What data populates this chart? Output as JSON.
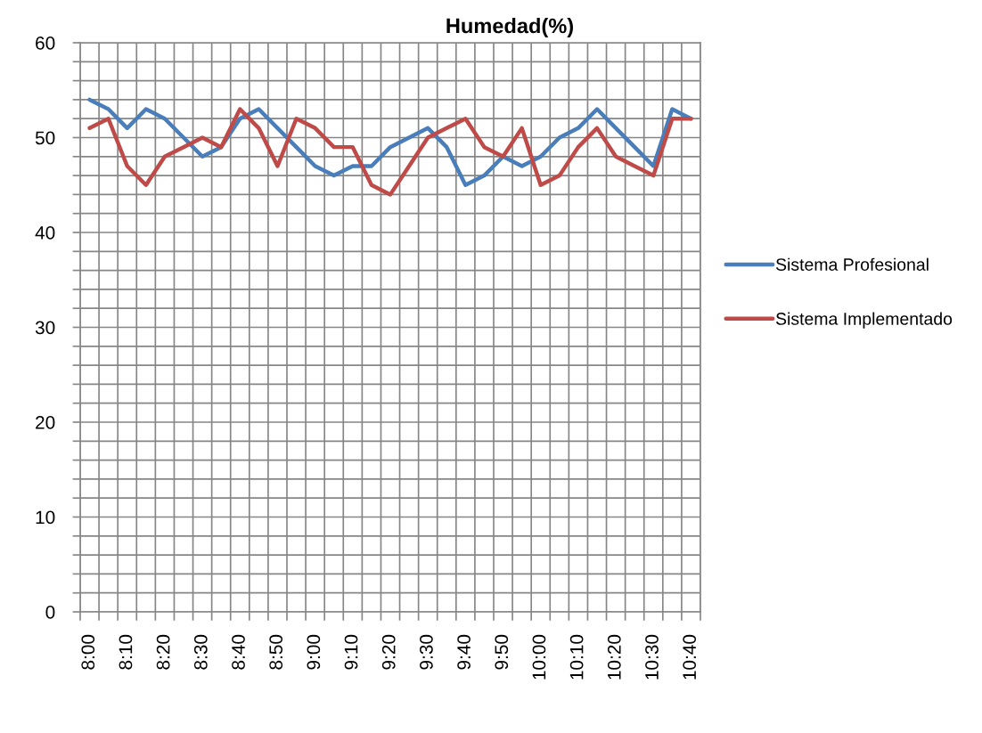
{
  "chart_data": {
    "type": "line",
    "title": "Humedad(%)",
    "categories": [
      "8:00",
      null,
      "8:10",
      null,
      "8:20",
      null,
      "8:30",
      null,
      "8:40",
      null,
      "8:50",
      null,
      "9:00",
      null,
      "9:10",
      null,
      "9:20",
      null,
      "9:30",
      null,
      "9:40",
      null,
      "9:50",
      null,
      "10:00",
      null,
      "10:10",
      null,
      "10:20",
      null,
      "10:30",
      null,
      "10:40"
    ],
    "series": [
      {
        "name": "Sistema Profesional",
        "color": "#4a7ebb",
        "values": [
          54,
          53,
          51,
          53,
          52,
          50,
          48,
          49,
          52,
          53,
          51,
          49,
          47,
          46,
          47,
          47,
          49,
          50,
          51,
          49,
          45,
          46,
          48,
          47,
          48,
          50,
          51,
          53,
          51,
          49,
          47,
          53,
          52
        ]
      },
      {
        "name": "Sistema Implementado",
        "color": "#be4b48",
        "values": [
          51,
          52,
          47,
          45,
          48,
          49,
          50,
          49,
          53,
          51,
          47,
          52,
          51,
          49,
          49,
          45,
          44,
          47,
          50,
          51,
          52,
          49,
          48,
          51,
          45,
          46,
          49,
          51,
          48,
          47,
          46,
          52,
          52
        ]
      }
    ],
    "ylim": [
      0,
      60
    ],
    "yticks": [
      0,
      {
        "value": 2,
        "label": null
      },
      {
        "value": 4,
        "label": null
      },
      {
        "value": 6,
        "label": null
      },
      {
        "value": 8,
        "label": null
      },
      10,
      {
        "value": 12,
        "label": null
      },
      {
        "value": 14,
        "label": null
      },
      {
        "value": 16,
        "label": null
      },
      {
        "value": 18,
        "label": null
      },
      20,
      {
        "value": 22,
        "label": null
      },
      {
        "value": 24,
        "label": null
      },
      {
        "value": 26,
        "label": null
      },
      {
        "value": 28,
        "label": null
      },
      30,
      {
        "value": 32,
        "label": null
      },
      {
        "value": 34,
        "label": null
      },
      {
        "value": 36,
        "label": null
      },
      {
        "value": 38,
        "label": null
      },
      40,
      {
        "value": 42,
        "label": null
      },
      {
        "value": 44,
        "label": null
      },
      {
        "value": 46,
        "label": null
      },
      {
        "value": 48,
        "label": null
      },
      50,
      {
        "value": 52,
        "label": null
      },
      {
        "value": 54,
        "label": null
      },
      {
        "value": 56,
        "label": null
      },
      {
        "value": 58,
        "label": null
      },
      60
    ],
    "grid": true,
    "legend": "right"
  }
}
